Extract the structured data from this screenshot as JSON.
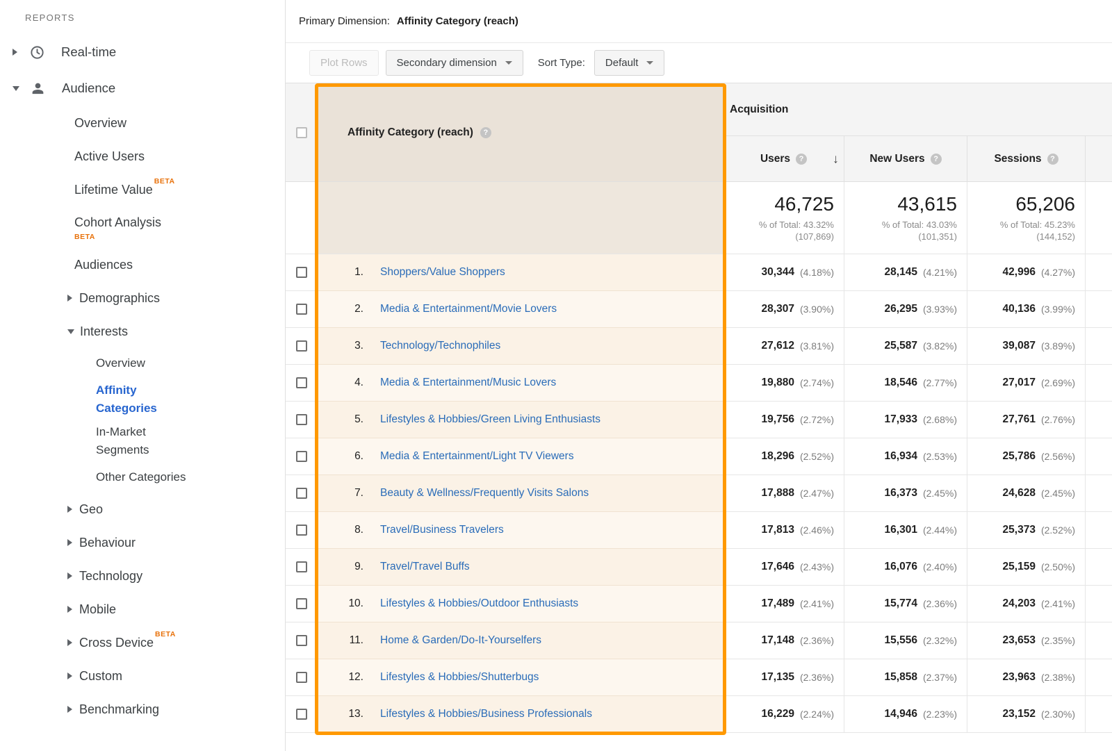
{
  "sidebar": {
    "section_label": "REPORTS",
    "beta_label": "BETA",
    "items": [
      {
        "label": "Real-time",
        "level": 0,
        "arrow": "right",
        "icon": "clock"
      },
      {
        "label": "Audience",
        "level": 0,
        "arrow": "down",
        "icon": "person",
        "pill": "gray"
      },
      {
        "label": "Overview",
        "level": 1
      },
      {
        "label": "Active Users",
        "level": 1
      },
      {
        "label": "Lifetime Value",
        "level": 1,
        "beta": "sup"
      },
      {
        "label": "Cohort Analysis",
        "level": 1,
        "beta": "below"
      },
      {
        "label": "Audiences",
        "level": 1
      },
      {
        "label": "Demographics",
        "level": 1,
        "arrow": "right"
      },
      {
        "label": "Interests",
        "level": 1,
        "arrow": "down",
        "pill": "gray"
      },
      {
        "label": "Overview",
        "level": 2
      },
      {
        "label": "Affinity\nCategories",
        "level": 2,
        "pill": "blue",
        "active": true
      },
      {
        "label": "In-Market\nSegments",
        "level": 2
      },
      {
        "label": "Other Categories",
        "level": 2
      },
      {
        "label": "Geo",
        "level": 1,
        "arrow": "right"
      },
      {
        "label": "Behaviour",
        "level": 1,
        "arrow": "right"
      },
      {
        "label": "Technology",
        "level": 1,
        "arrow": "right"
      },
      {
        "label": "Mobile",
        "level": 1,
        "arrow": "right"
      },
      {
        "label": "Cross Device",
        "level": 1,
        "arrow": "right",
        "beta": "sup"
      },
      {
        "label": "Custom",
        "level": 1,
        "arrow": "right"
      },
      {
        "label": "Benchmarking",
        "level": 1,
        "arrow": "right"
      }
    ]
  },
  "primary_dimension": {
    "label": "Primary Dimension:",
    "value": "Affinity Category (reach)"
  },
  "toolbar": {
    "plot_rows": "Plot Rows",
    "secondary_dimension": "Secondary dimension",
    "sort_type_label": "Sort Type:",
    "sort_type_value": "Default"
  },
  "icons": {
    "help": "?",
    "sort_desc": "↓"
  },
  "table": {
    "group_header": "Acquisition",
    "dimension_header": "Affinity Category (reach)",
    "columns": [
      "Users",
      "New Users",
      "Sessions"
    ],
    "totals": [
      {
        "value": "46,725",
        "pct": "% of Total: 43.32%",
        "base": "(107,869)"
      },
      {
        "value": "43,615",
        "pct": "% of Total: 43.03%",
        "base": "(101,351)"
      },
      {
        "value": "65,206",
        "pct": "% of Total: 45.23%",
        "base": "(144,152)"
      }
    ],
    "rows": [
      {
        "index": "1.",
        "name": "Shoppers/Value Shoppers",
        "metrics": [
          [
            "30,344",
            "(4.18%)"
          ],
          [
            "28,145",
            "(4.21%)"
          ],
          [
            "42,996",
            "(4.27%)"
          ]
        ]
      },
      {
        "index": "2.",
        "name": "Media & Entertainment/Movie Lovers",
        "metrics": [
          [
            "28,307",
            "(3.90%)"
          ],
          [
            "26,295",
            "(3.93%)"
          ],
          [
            "40,136",
            "(3.99%)"
          ]
        ]
      },
      {
        "index": "3.",
        "name": "Technology/Technophiles",
        "metrics": [
          [
            "27,612",
            "(3.81%)"
          ],
          [
            "25,587",
            "(3.82%)"
          ],
          [
            "39,087",
            "(3.89%)"
          ]
        ]
      },
      {
        "index": "4.",
        "name": "Media & Entertainment/Music Lovers",
        "metrics": [
          [
            "19,880",
            "(2.74%)"
          ],
          [
            "18,546",
            "(2.77%)"
          ],
          [
            "27,017",
            "(2.69%)"
          ]
        ]
      },
      {
        "index": "5.",
        "name": "Lifestyles & Hobbies/Green Living Enthusiasts",
        "metrics": [
          [
            "19,756",
            "(2.72%)"
          ],
          [
            "17,933",
            "(2.68%)"
          ],
          [
            "27,761",
            "(2.76%)"
          ]
        ]
      },
      {
        "index": "6.",
        "name": "Media & Entertainment/Light TV Viewers",
        "metrics": [
          [
            "18,296",
            "(2.52%)"
          ],
          [
            "16,934",
            "(2.53%)"
          ],
          [
            "25,786",
            "(2.56%)"
          ]
        ]
      },
      {
        "index": "7.",
        "name": "Beauty & Wellness/Frequently Visits Salons",
        "metrics": [
          [
            "17,888",
            "(2.47%)"
          ],
          [
            "16,373",
            "(2.45%)"
          ],
          [
            "24,628",
            "(2.45%)"
          ]
        ]
      },
      {
        "index": "8.",
        "name": "Travel/Business Travelers",
        "metrics": [
          [
            "17,813",
            "(2.46%)"
          ],
          [
            "16,301",
            "(2.44%)"
          ],
          [
            "25,373",
            "(2.52%)"
          ]
        ]
      },
      {
        "index": "9.",
        "name": "Travel/Travel Buffs",
        "metrics": [
          [
            "17,646",
            "(2.43%)"
          ],
          [
            "16,076",
            "(2.40%)"
          ],
          [
            "25,159",
            "(2.50%)"
          ]
        ]
      },
      {
        "index": "10.",
        "name": "Lifestyles & Hobbies/Outdoor Enthusiasts",
        "metrics": [
          [
            "17,489",
            "(2.41%)"
          ],
          [
            "15,774",
            "(2.36%)"
          ],
          [
            "24,203",
            "(2.41%)"
          ]
        ]
      },
      {
        "index": "11.",
        "name": "Home & Garden/Do-It-Yourselfers",
        "metrics": [
          [
            "17,148",
            "(2.36%)"
          ],
          [
            "15,556",
            "(2.32%)"
          ],
          [
            "23,653",
            "(2.35%)"
          ]
        ]
      },
      {
        "index": "12.",
        "name": "Lifestyles & Hobbies/Shutterbugs",
        "metrics": [
          [
            "17,135",
            "(2.36%)"
          ],
          [
            "15,858",
            "(2.37%)"
          ],
          [
            "23,963",
            "(2.38%)"
          ]
        ]
      },
      {
        "index": "13.",
        "name": "Lifestyles & Hobbies/Business Professionals",
        "metrics": [
          [
            "16,229",
            "(2.24%)"
          ],
          [
            "14,946",
            "(2.23%)"
          ],
          [
            "23,152",
            "(2.30%)"
          ]
        ]
      }
    ]
  },
  "colors": {
    "highlight_orange": "#ff9900",
    "link_blue": "#2a6cb8",
    "active_nav_blue": "#2765cf",
    "beta_orange": "#e8710a",
    "header_gray": "#f4f4f4",
    "highlighted_header_tan": "#eae2d8"
  }
}
